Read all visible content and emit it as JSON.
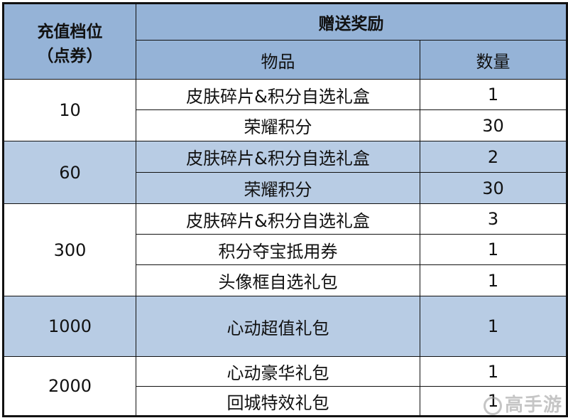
{
  "header": {
    "tier": "充值档位\n（点券）",
    "tier_line1": "充值档位",
    "tier_line2": "（点券）",
    "reward": "赠送奖励",
    "item": "物品",
    "quantity": "数量"
  },
  "colors": {
    "header": "#95b3d7",
    "band": "#b8cce4"
  },
  "tiers": [
    {
      "tier": "10",
      "rows": [
        {
          "item": "皮肤碎片&积分自选礼盒",
          "qty": "1"
        },
        {
          "item": "荣耀积分",
          "qty": "30"
        }
      ]
    },
    {
      "tier": "60",
      "rows": [
        {
          "item": "皮肤碎片&积分自选礼盒",
          "qty": "2"
        },
        {
          "item": "荣耀积分",
          "qty": "30"
        }
      ]
    },
    {
      "tier": "300",
      "rows": [
        {
          "item": "皮肤碎片&积分自选礼盒",
          "qty": "3"
        },
        {
          "item": "积分夺宝抵用券",
          "qty": "1"
        },
        {
          "item": "头像框自选礼包",
          "qty": "1"
        }
      ]
    },
    {
      "tier": "1000",
      "rows": [
        {
          "item": "心动超值礼包",
          "qty": "1"
        }
      ]
    },
    {
      "tier": "2000",
      "rows": [
        {
          "item": "心动豪华礼包",
          "qty": "1"
        },
        {
          "item": "回城特效礼包",
          "qty": "1"
        }
      ]
    }
  ],
  "watermark": "高手游"
}
